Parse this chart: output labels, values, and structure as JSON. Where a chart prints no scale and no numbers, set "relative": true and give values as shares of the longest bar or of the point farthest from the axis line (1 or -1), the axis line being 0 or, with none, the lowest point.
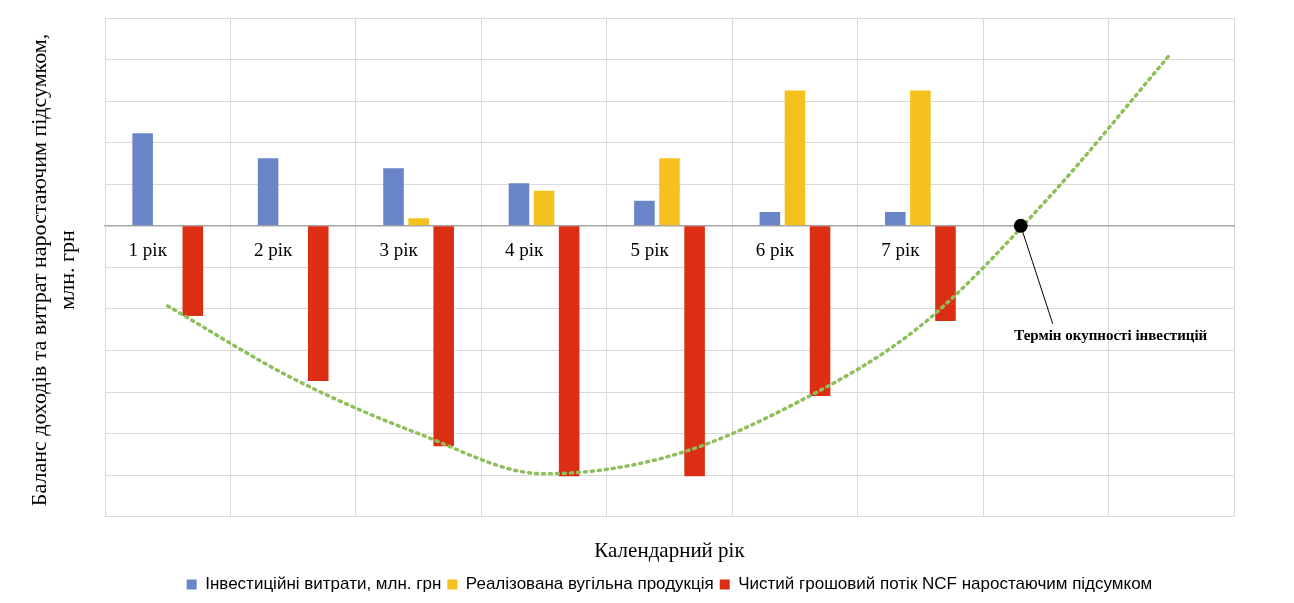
{
  "chart_data": {
    "type": "bar",
    "relative": true,
    "ylabel": "Баланс доходів та витрат наростаючим підсумком, млн. грн",
    "xlabel": "Календарний рік",
    "categories": [
      "1 рік",
      "2 рік",
      "3 рік",
      "4 рік",
      "5 рік",
      "6 рік",
      "7 рік",
      null,
      null
    ],
    "series": [
      {
        "name": "Інвестиційні витрати, млн. грн",
        "color": "#6a84c8",
        "values": [
          0.37,
          0.27,
          0.23,
          0.17,
          0.1,
          0.055,
          0.055,
          null,
          null
        ]
      },
      {
        "name": "Реалізована вугільна продукція",
        "color": "#f5c11e",
        "values": [
          0,
          0,
          0.03,
          0.14,
          0.27,
          0.54,
          0.54,
          null,
          null
        ]
      },
      {
        "name": "Чистий грошовий потік NCF наростаючим підсумком",
        "color": "#dc2e12",
        "values": [
          -0.36,
          -0.62,
          -0.88,
          -1,
          -1,
          -0.68,
          -0.38,
          null,
          null
        ]
      },
      {
        "type": "line",
        "color": "#8fbf5a",
        "line_style": "dotted",
        "marker": "none",
        "values": [
          -0.32,
          -0.61,
          -0.83,
          -0.99,
          -0.92,
          -0.71,
          -0.4,
          0.1,
          0.69
        ]
      }
    ],
    "annotations": [
      "Термін окупності інвестицій"
    ],
    "grid": true,
    "legend": "bottom"
  }
}
